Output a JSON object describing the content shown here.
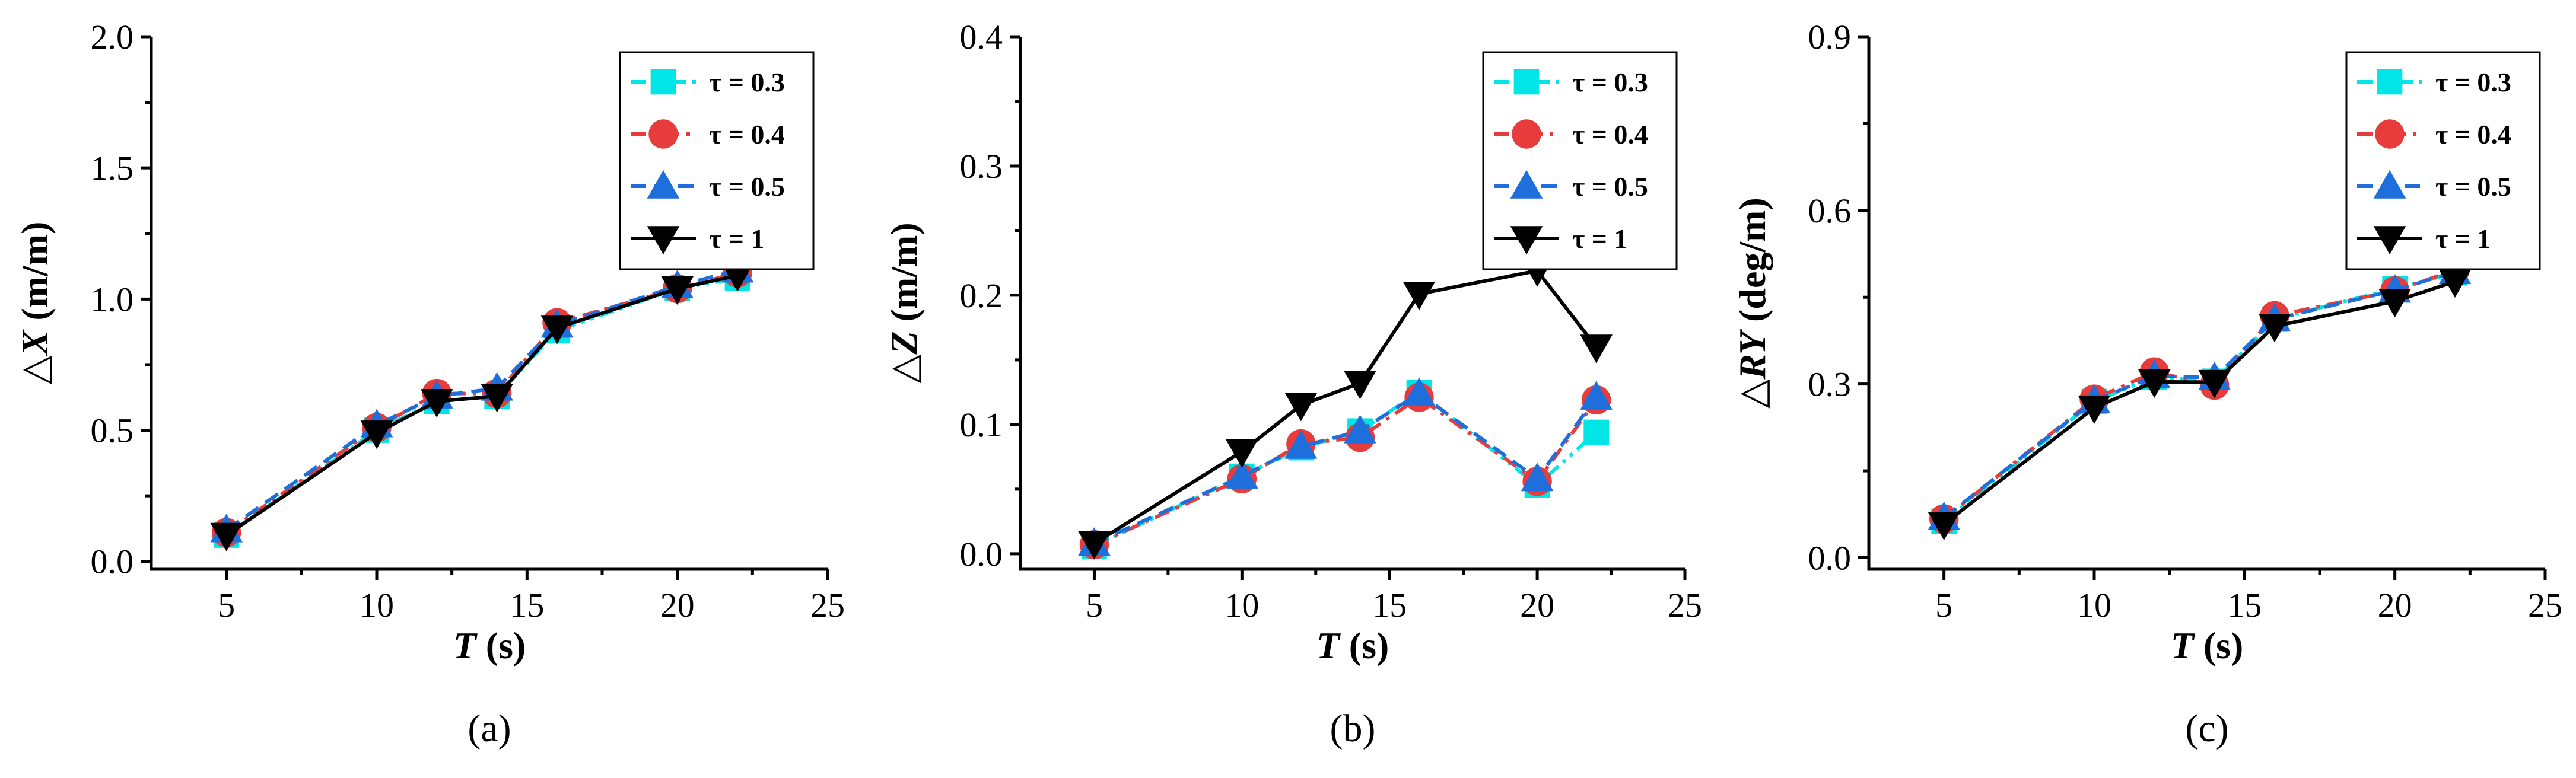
{
  "chart_data": [
    {
      "type": "line",
      "panel_label": "(a)",
      "xlabel_var": "T",
      "xlabel_unit": " (s)",
      "ylabel_prefix": "△",
      "ylabel_var": "X",
      "ylabel_unit": " (m/m)",
      "xlim": [
        2.5,
        25
      ],
      "ylim": [
        -0.03,
        2.0
      ],
      "xticks": [
        "5",
        "10",
        "15",
        "20",
        "25"
      ],
      "xtick_values": [
        5,
        10,
        15,
        20,
        25
      ],
      "yticks": [
        "0.0",
        "0.5",
        "1.0",
        "1.5",
        "2.0"
      ],
      "ytick_values": [
        0,
        0.5,
        1.0,
        1.5,
        2.0
      ],
      "x": [
        5,
        10,
        12,
        14,
        16,
        20,
        22
      ],
      "legend_position": "top-right",
      "series": [
        {
          "name": "τ = 0.3",
          "values": [
            0.1,
            0.5,
            0.61,
            0.63,
            0.88,
            1.04,
            1.08
          ]
        },
        {
          "name": "τ = 0.4",
          "values": [
            0.11,
            0.51,
            0.64,
            0.64,
            0.91,
            1.04,
            1.1
          ]
        },
        {
          "name": "τ = 0.5",
          "values": [
            0.12,
            0.52,
            0.63,
            0.66,
            0.9,
            1.05,
            1.11
          ]
        },
        {
          "name": "τ = 1",
          "values": [
            0.1,
            0.49,
            0.61,
            0.63,
            0.89,
            1.04,
            1.09
          ]
        }
      ]
    },
    {
      "type": "line",
      "panel_label": "(b)",
      "xlabel_var": "T",
      "xlabel_unit": " (s)",
      "ylabel_prefix": "△",
      "ylabel_var": "Z",
      "ylabel_unit": " (m/m)",
      "xlim": [
        2.5,
        25
      ],
      "ylim": [
        -0.012,
        0.4
      ],
      "xticks": [
        "5",
        "10",
        "15",
        "20",
        "25"
      ],
      "xtick_values": [
        5,
        10,
        15,
        20,
        25
      ],
      "yticks": [
        "0.0",
        "0.1",
        "0.2",
        "0.3",
        "0.4"
      ],
      "ytick_values": [
        0,
        0.1,
        0.2,
        0.3,
        0.4
      ],
      "x": [
        5,
        10,
        12,
        14,
        16,
        20,
        22
      ],
      "legend_position": "top-right",
      "series": [
        {
          "name": "τ = 0.3",
          "values": [
            0.006,
            0.06,
            0.082,
            0.095,
            0.125,
            0.053,
            0.094
          ]
        },
        {
          "name": "τ = 0.4",
          "values": [
            0.007,
            0.058,
            0.085,
            0.09,
            0.121,
            0.056,
            0.119
          ]
        },
        {
          "name": "τ = 0.5",
          "values": [
            0.008,
            0.06,
            0.083,
            0.095,
            0.124,
            0.058,
            0.121
          ]
        },
        {
          "name": "τ = 1",
          "values": [
            0.008,
            0.079,
            0.115,
            0.132,
            0.201,
            0.219,
            0.16
          ]
        }
      ]
    },
    {
      "type": "line",
      "panel_label": "(c)",
      "xlabel_var": "T",
      "xlabel_unit": " (s)",
      "ylabel_prefix": "△",
      "ylabel_var": "RY",
      "ylabel_unit": " (deg/m)",
      "xlim": [
        2.5,
        25
      ],
      "ylim": [
        -0.02,
        0.9
      ],
      "xticks": [
        "5",
        "10",
        "15",
        "20",
        "25"
      ],
      "xtick_values": [
        5,
        10,
        15,
        20,
        25
      ],
      "yticks": [
        "0.0",
        "0.3",
        "0.6",
        "0.9"
      ],
      "ytick_values": [
        0,
        0.3,
        0.6,
        0.9
      ],
      "x": [
        5,
        10,
        12,
        14,
        16,
        20,
        22
      ],
      "legend_position": "top-right",
      "series": [
        {
          "name": "τ = 0.3",
          "values": [
            0.063,
            0.27,
            0.312,
            0.305,
            0.412,
            0.465,
            0.492
          ]
        },
        {
          "name": "τ = 0.4",
          "values": [
            0.067,
            0.274,
            0.321,
            0.298,
            0.418,
            0.461,
            0.497
          ]
        },
        {
          "name": "τ = 0.5",
          "values": [
            0.069,
            0.271,
            0.314,
            0.311,
            0.412,
            0.462,
            0.494
          ]
        },
        {
          "name": "τ = 1",
          "values": [
            0.058,
            0.259,
            0.304,
            0.303,
            0.4,
            0.443,
            0.477
          ]
        }
      ]
    }
  ],
  "series_styles": [
    {
      "color": "#00e5e5",
      "marker": "square",
      "dash": "dash-dot-dot"
    },
    {
      "color": "#e83b3b",
      "marker": "circle",
      "dash": "dash-dot"
    },
    {
      "color": "#1e6fdc",
      "marker": "triangle-up",
      "dash": "dash"
    },
    {
      "color": "#000000",
      "marker": "triangle-down",
      "dash": "solid"
    }
  ]
}
